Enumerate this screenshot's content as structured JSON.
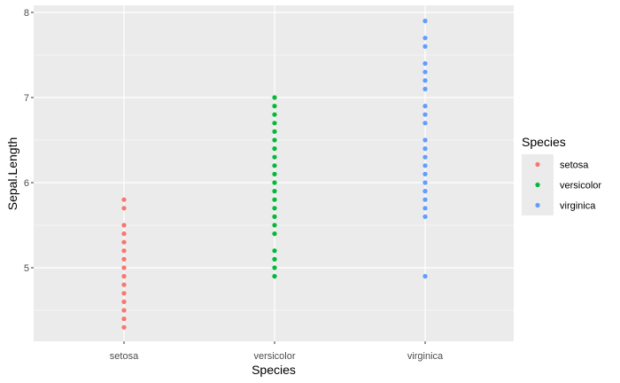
{
  "chart_data": {
    "type": "scatter",
    "xlabel": "Species",
    "ylabel": "Sepal.Length",
    "categories": [
      "setosa",
      "versicolor",
      "virginica"
    ],
    "ylim": [
      4.15,
      8.1
    ],
    "yticks": [
      5,
      6,
      7,
      8
    ],
    "grid": true,
    "legend": {
      "title": "Species",
      "placement": "right"
    },
    "series": [
      {
        "name": "setosa",
        "color": "#F8766D",
        "values": [
          4.3,
          4.4,
          4.5,
          4.6,
          4.7,
          4.8,
          4.9,
          5.0,
          5.1,
          5.2,
          5.3,
          5.4,
          5.5,
          5.7,
          5.8
        ]
      },
      {
        "name": "versicolor",
        "color": "#00BA38",
        "values": [
          4.9,
          5.0,
          5.1,
          5.2,
          5.4,
          5.5,
          5.6,
          5.7,
          5.8,
          5.9,
          6.0,
          6.1,
          6.2,
          6.3,
          6.4,
          6.5,
          6.6,
          6.7,
          6.8,
          6.9,
          7.0
        ]
      },
      {
        "name": "virginica",
        "color": "#619CFF",
        "values": [
          4.9,
          5.6,
          5.7,
          5.8,
          5.9,
          6.0,
          6.1,
          6.2,
          6.3,
          6.4,
          6.5,
          6.7,
          6.8,
          6.9,
          7.1,
          7.2,
          7.3,
          7.4,
          7.6,
          7.7,
          7.9
        ]
      }
    ]
  }
}
